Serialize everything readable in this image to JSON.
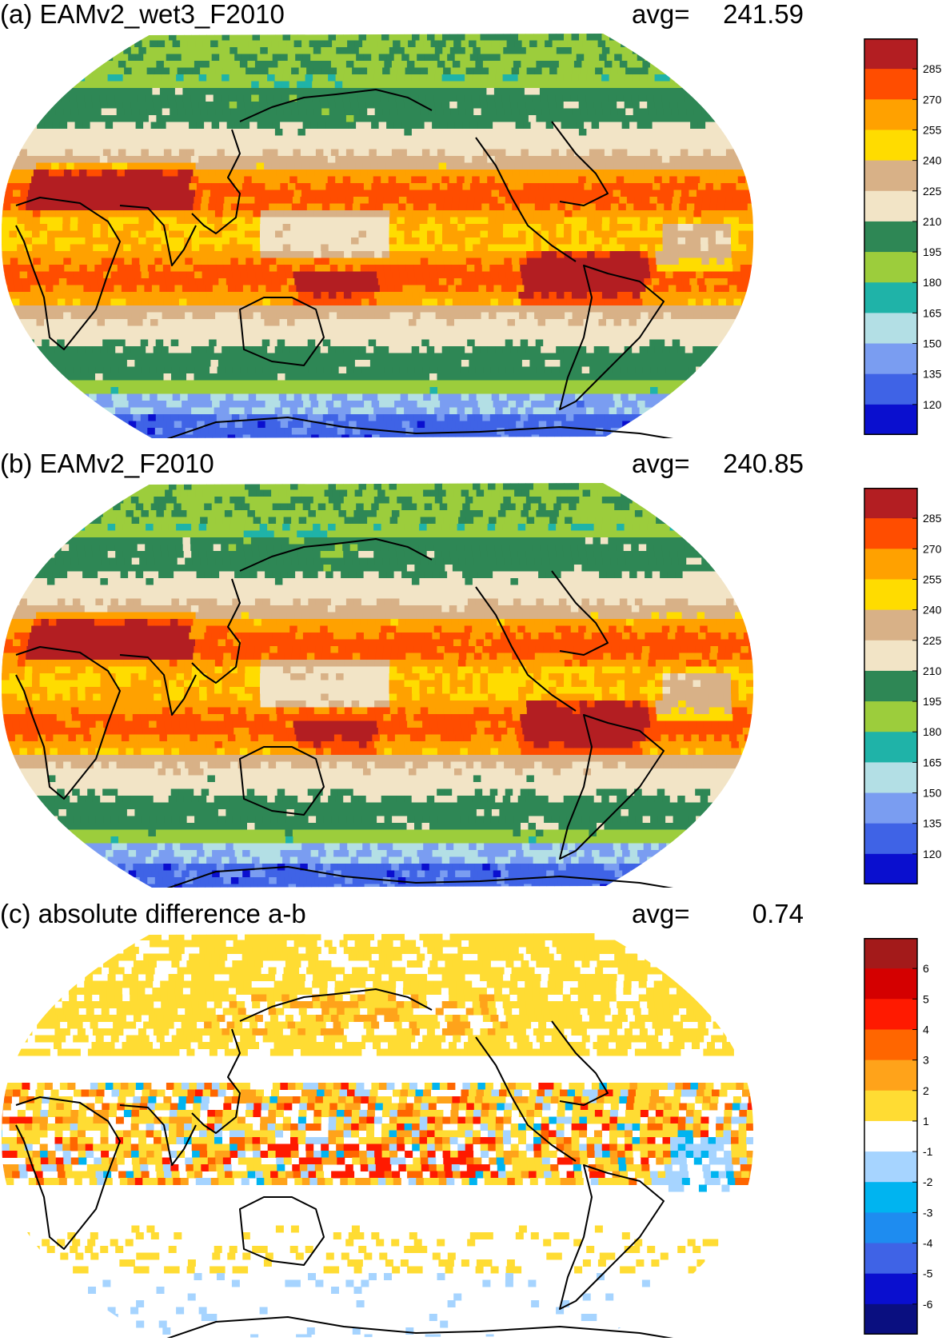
{
  "colors": {
    "abs_scale": [
      "#0a0fcf",
      "#3f63e6",
      "#7a9df1",
      "#b3dfe5",
      "#1fb3a8",
      "#9ccd3c",
      "#2e8755",
      "#f2e4c6",
      "#d8b187",
      "#ffdc00",
      "#ffa100",
      "#ff4d00",
      "#b31e22"
    ],
    "diff_scale": [
      "#0a0f80",
      "#0a0fcf",
      "#3f63e6",
      "#1e8cf0",
      "#00b4f0",
      "#a6d4ff",
      "#ffffff",
      "#ffdc33",
      "#ffa31a",
      "#ff6600",
      "#ff1a00",
      "#d40000",
      "#a31a1a"
    ],
    "coastline": "#000000"
  },
  "panels": [
    {
      "title": "(a) EAMv2_wet3_F2010",
      "avg_label": "avg=",
      "avg_value": "241.59",
      "colorbar": {
        "labels": [
          "285",
          "270",
          "255",
          "240",
          "225",
          "210",
          "195",
          "180",
          "165",
          "150",
          "135",
          "120"
        ]
      }
    },
    {
      "title": "(b) EAMv2_F2010",
      "avg_label": "avg=",
      "avg_value": "240.85",
      "colorbar": {
        "labels": [
          "285",
          "270",
          "255",
          "240",
          "225",
          "210",
          "195",
          "180",
          "165",
          "150",
          "135",
          "120"
        ]
      }
    },
    {
      "title": "(c) absolute difference a-b",
      "avg_label": "avg=",
      "avg_value": "0.74",
      "colorbar": {
        "labels": [
          "6",
          "5",
          "4",
          "3",
          "2",
          "1",
          "-1",
          "-2",
          "-3",
          "-4",
          "-5",
          "-6"
        ]
      }
    }
  ]
}
